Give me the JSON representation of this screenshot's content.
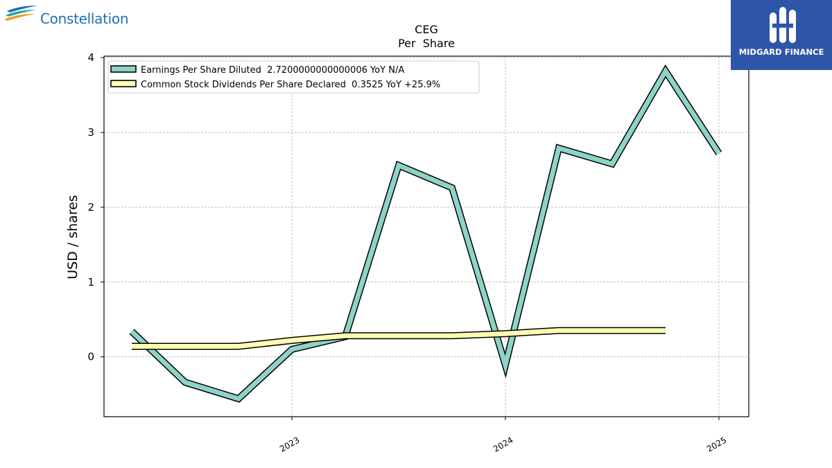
{
  "logos": {
    "left_text": "Constellation",
    "right_text": "MIDGARD FINANCE"
  },
  "chart_data": {
    "type": "line",
    "title": "CEG",
    "subtitle": "Per  Share",
    "ylabel": "USD / shares",
    "xlabel": "",
    "ylim": [
      -0.8,
      4.02
    ],
    "xlim": [
      2022.12,
      2025.14
    ],
    "yticks": [
      0,
      1,
      2,
      3,
      4
    ],
    "xticks": [
      2023,
      2024,
      2025
    ],
    "grid": true,
    "legend_position": "top-left",
    "series": [
      {
        "name": "Earnings Per Share Diluted  2.7200000000000006 YoY N/A",
        "color": "#8dd3c7",
        "x": [
          2022.25,
          2022.5,
          2022.75,
          2023.0,
          2023.25,
          2023.5,
          2023.75,
          2024.0,
          2024.25,
          2024.5,
          2024.75,
          2025.0
        ],
        "y": [
          0.34,
          -0.34,
          -0.56,
          0.1,
          0.27,
          2.56,
          2.26,
          -0.11,
          2.79,
          2.58,
          3.82,
          2.72
        ]
      },
      {
        "name": "Common Stock Dividends Per Share Declared  0.3525 YoY +25.9%",
        "color": "#ffffb3",
        "x": [
          2022.25,
          2022.5,
          2022.75,
          2023.0,
          2023.25,
          2023.5,
          2023.75,
          2024.0,
          2024.25,
          2024.5,
          2024.75
        ],
        "y": [
          0.141,
          0.141,
          0.141,
          0.22,
          0.282,
          0.282,
          0.282,
          0.3105,
          0.3525,
          0.3525,
          0.3525
        ]
      }
    ]
  }
}
